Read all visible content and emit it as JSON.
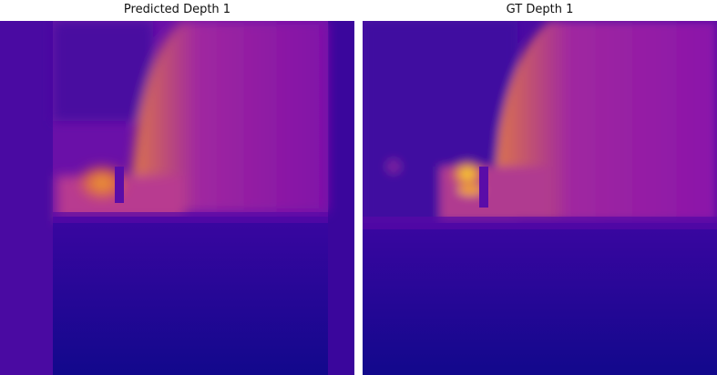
{
  "panels": [
    {
      "title": "Predicted Depth 1",
      "colormap": "plasma"
    },
    {
      "title": "GT Depth 1",
      "colormap": "plasma"
    }
  ],
  "colors": {
    "plasma_low": "#1a0890",
    "plasma_mid": "#8b10a8",
    "plasma_orange": "#e0703a",
    "plasma_high": "#f5e040",
    "background": "#ffffff"
  }
}
